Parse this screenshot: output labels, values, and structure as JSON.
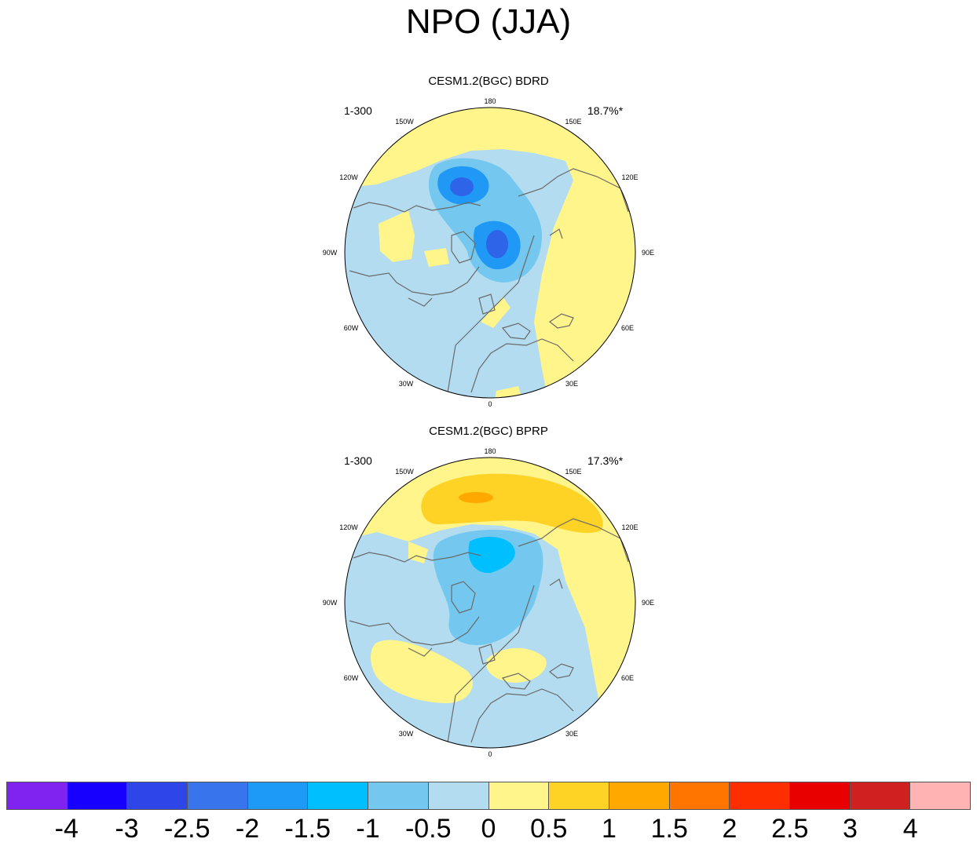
{
  "title": "NPO (JJA)",
  "panels": [
    {
      "title": "CESM1.2(BGC) BDRD",
      "period": "1-300",
      "variance": "18.7%*",
      "fill_colors": [
        "#b3dcf1",
        "#fff58a",
        "#74c8f0",
        "#1f99f5",
        "#2d64e8"
      ]
    },
    {
      "title": "CESM1.2(BGC) BPRP",
      "period": "1-300",
      "variance": "17.3%*",
      "fill_colors": [
        "#b3dcf1",
        "#fff58a",
        "#74c8f0",
        "#00bfff",
        "#ffd326",
        "#ffa800"
      ]
    }
  ],
  "lon_labels": [
    "180",
    "150E",
    "120E",
    "90E",
    "60E",
    "30E",
    "0",
    "30W",
    "60W",
    "90W",
    "120W",
    "150W"
  ],
  "colorbar": {
    "colors": [
      "#8022f0",
      "#1800ff",
      "#2e46e8",
      "#3875ed",
      "#1c9af5",
      "#00bfff",
      "#74c8f0",
      "#b3dcf1",
      "#fff58a",
      "#ffd326",
      "#ffa800",
      "#ff7500",
      "#ff2e00",
      "#e80000",
      "#d12020",
      "#ffb3b3"
    ],
    "labels": [
      "-4",
      "-3",
      "-2.5",
      "-2",
      "-1.5",
      "-1",
      "-0.5",
      "0",
      "0.5",
      "1",
      "1.5",
      "2",
      "2.5",
      "3",
      "4"
    ]
  }
}
